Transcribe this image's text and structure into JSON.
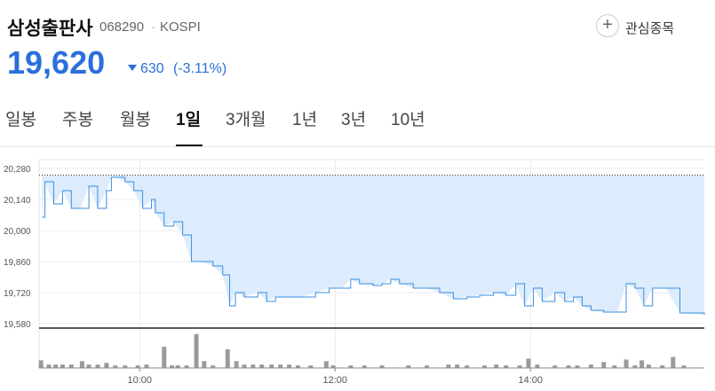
{
  "header": {
    "name": "삼성출판사",
    "code": "068290",
    "separator": "·",
    "market": "KOSPI",
    "watch": "관심종목",
    "price": "19,620",
    "change": "630",
    "change_pct": "(-3.11%)"
  },
  "tabs": {
    "items": [
      "일봉",
      "주봉",
      "월봉",
      "1일",
      "3개월",
      "1년",
      "3년",
      "10년"
    ],
    "active": 3
  },
  "chart_data": [
    {
      "type": "line",
      "color": "#3a8ee0",
      "fill": "#dcecfc",
      "reference_value": 20250,
      "x": [
        9.0,
        9.03,
        9.12,
        9.21,
        9.3,
        9.39,
        9.48,
        9.57,
        9.66,
        9.71,
        9.75,
        9.85,
        9.94,
        10.03,
        10.12,
        10.16,
        10.25,
        10.35,
        10.44,
        10.53,
        10.62,
        10.75,
        10.85,
        10.92,
        10.98,
        11.07,
        11.21,
        11.3,
        11.39,
        11.53,
        11.66,
        11.8,
        11.94,
        12.07,
        12.16,
        12.25,
        12.39,
        12.48,
        12.57,
        12.66,
        12.8,
        12.94,
        13.07,
        13.21,
        13.35,
        13.48,
        13.62,
        13.75,
        13.85,
        13.94,
        14.03,
        14.12,
        14.25,
        14.35,
        14.44,
        14.53,
        14.62,
        14.75,
        14.89,
        14.98,
        15.07,
        15.16,
        15.25,
        15.39,
        15.53,
        15.78
      ],
      "values": [
        20060,
        20220,
        20120,
        20180,
        20100,
        20100,
        20200,
        20100,
        20180,
        20240,
        20240,
        20220,
        20180,
        20100,
        20140,
        20080,
        20020,
        20040,
        19980,
        19860,
        19860,
        19840,
        19800,
        19660,
        19720,
        19700,
        19720,
        19680,
        19700,
        19700,
        19700,
        19720,
        19740,
        19740,
        19780,
        19760,
        19752,
        19760,
        19780,
        19760,
        19740,
        19740,
        19720,
        19692,
        19700,
        19708,
        19720,
        19708,
        19760,
        19660,
        19740,
        19680,
        19720,
        19680,
        19700,
        19660,
        19640,
        19632,
        19632,
        19760,
        19740,
        19660,
        19740,
        19740,
        19628,
        19620
      ],
      "xlim": [
        8.97,
        15.78
      ],
      "ylim": [
        19560,
        20280
      ],
      "yticks": [
        {
          "value": 20280,
          "label": "20,280"
        },
        {
          "value": 20140,
          "label": "20,140"
        },
        {
          "value": 20000,
          "label": "20,000"
        },
        {
          "value": 19860,
          "label": "19,860"
        },
        {
          "value": 19720,
          "label": "19,720"
        },
        {
          "value": 19580,
          "label": "19,580"
        }
      ],
      "xticks": [
        {
          "value": 10,
          "label": "10:00"
        },
        {
          "value": 12,
          "label": "12:00"
        },
        {
          "value": 14,
          "label": "14:00"
        }
      ],
      "grid": true
    },
    {
      "type": "bar",
      "color": "#9a9a9a",
      "x": [
        8.99,
        9.07,
        9.14,
        9.21,
        9.3,
        9.41,
        9.48,
        9.57,
        9.66,
        9.75,
        9.85,
        9.98,
        10.07,
        10.25,
        10.33,
        10.39,
        10.48,
        10.58,
        10.66,
        10.75,
        10.9,
        10.99,
        11.07,
        11.16,
        11.25,
        11.35,
        11.44,
        11.53,
        11.62,
        11.75,
        11.91,
        11.98,
        12.16,
        12.3,
        12.48,
        12.75,
        12.94,
        13.16,
        13.25,
        13.35,
        13.53,
        13.65,
        13.75,
        13.89,
        13.98,
        14.07,
        14.25,
        14.39,
        14.48,
        14.62,
        14.75,
        14.86,
        14.98,
        15.07,
        15.14,
        15.21,
        15.35,
        15.46,
        15.57
      ],
      "values": [
        9000,
        4000,
        4000,
        4000,
        4000,
        8000,
        4000,
        4000,
        6000,
        3000,
        3000,
        3000,
        4000,
        25000,
        3000,
        3000,
        3000,
        40000,
        8000,
        3000,
        22000,
        8000,
        4000,
        4000,
        4000,
        4000,
        4000,
        4000,
        3000,
        3000,
        8000,
        3000,
        3000,
        3000,
        3000,
        3000,
        3000,
        4000,
        4000,
        3000,
        3000,
        4000,
        3000,
        3000,
        11000,
        4000,
        3000,
        3000,
        3000,
        4000,
        7000,
        3000,
        10000,
        3000,
        9000,
        4000,
        3000,
        13000,
        3000
      ],
      "xlim": [
        8.97,
        15.78
      ],
      "ylim": [
        0,
        45000
      ]
    }
  ]
}
